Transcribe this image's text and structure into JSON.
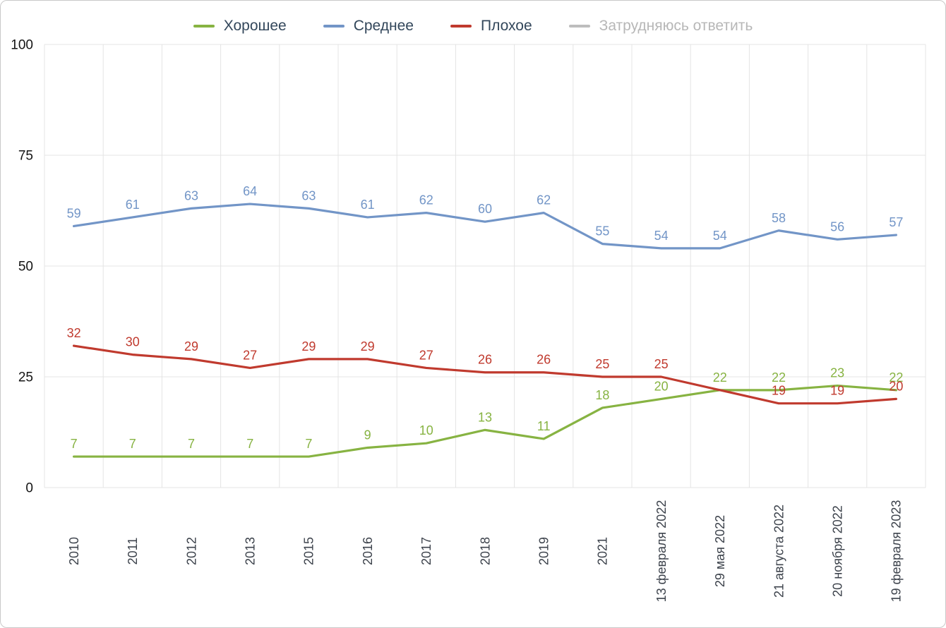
{
  "legend": {
    "text_color": "#33475b",
    "muted_text_color": "#b7b7b7",
    "items": [
      {
        "key": "good",
        "label": "Хорошее",
        "color": "#87b342",
        "muted": false
      },
      {
        "key": "average",
        "label": "Среднее",
        "color": "#7295c7",
        "muted": false
      },
      {
        "key": "bad",
        "label": "Плохое",
        "color": "#c03a2e",
        "muted": false
      },
      {
        "key": "undecided",
        "label": "Затрудняюсь ответить",
        "color": "#bdbdbd",
        "muted": true
      }
    ]
  },
  "chart_data": {
    "type": "line",
    "title": "",
    "xlabel": "",
    "ylabel": "",
    "ylim": [
      0,
      100
    ],
    "yticks": [
      0,
      25,
      50,
      75,
      100
    ],
    "grid": true,
    "legend_position": "top",
    "categories": [
      "2010",
      "2011",
      "2012",
      "2013",
      "2015",
      "2016",
      "2017",
      "2018",
      "2019",
      "2021",
      "13 февраля 2022",
      "29 мая 2022",
      "21 августа 2022",
      "20 ноября 2022",
      "19 февраля 2023"
    ],
    "series": [
      {
        "key": "good",
        "name": "Хорошее",
        "color": "#87b342",
        "values": [
          7,
          7,
          7,
          7,
          7,
          9,
          10,
          13,
          11,
          18,
          20,
          22,
          22,
          23,
          22
        ],
        "labels": [
          7,
          7,
          7,
          7,
          7,
          9,
          10,
          13,
          11,
          18,
          20,
          22,
          22,
          23,
          22
        ]
      },
      {
        "key": "average",
        "name": "Среднее",
        "color": "#7295c7",
        "values": [
          59,
          61,
          63,
          64,
          63,
          61,
          62,
          60,
          62,
          55,
          54,
          54,
          58,
          56,
          57
        ],
        "labels": [
          59,
          61,
          63,
          64,
          63,
          61,
          62,
          60,
          62,
          55,
          54,
          54,
          58,
          56,
          57
        ]
      },
      {
        "key": "bad",
        "name": "Плохое",
        "color": "#c03a2e",
        "values": [
          32,
          30,
          29,
          27,
          29,
          29,
          27,
          26,
          26,
          25,
          25,
          22,
          19,
          19,
          20
        ],
        "labels": [
          32,
          30,
          29,
          27,
          29,
          29,
          27,
          26,
          26,
          25,
          25,
          null,
          19,
          19,
          20
        ]
      },
      {
        "key": "undecided",
        "name": "Затрудняюсь ответить",
        "color": "#bdbdbd",
        "hidden": true,
        "values": [],
        "labels": []
      }
    ]
  }
}
